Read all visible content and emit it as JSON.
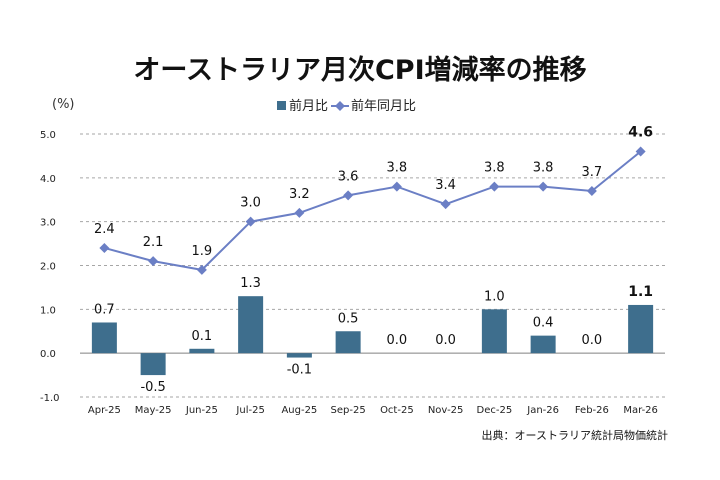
{
  "chart_data": {
    "type": "bar",
    "title": "オーストラリア月次CPI増減率の推移",
    "unit_label": "(%)",
    "source": "出典：オーストラリア統計局物価統計",
    "categories": [
      "Apr-25",
      "May-25",
      "Jun-25",
      "Jul-25",
      "Aug-25",
      "Sep-25",
      "Oct-25",
      "Nov-25",
      "Dec-25",
      "Jan-26",
      "Feb-26",
      "Mar-26"
    ],
    "ylim": [
      -1.0,
      5.0
    ],
    "yticks": [
      "5.0",
      "4.0",
      "3.0",
      "2.0",
      "1.0",
      "0.0",
      "-1.0"
    ],
    "grid": true,
    "legend_position": "top",
    "series": [
      {
        "name": "前月比",
        "type": "bar",
        "color": "#3e6e8d",
        "values": [
          0.7,
          -0.5,
          0.1,
          1.3,
          -0.1,
          0.5,
          0.0,
          0.0,
          1.0,
          0.4,
          0.0,
          1.1
        ],
        "labels": [
          "0.7",
          "-0.5",
          "0.1",
          "1.3",
          "-0.1",
          "0.5",
          "0.0",
          "0.0",
          "1.0",
          "0.4",
          "0.0",
          "1.1"
        ]
      },
      {
        "name": "前年同月比",
        "type": "line",
        "color": "#6b7fc5",
        "values": [
          2.4,
          2.1,
          1.9,
          3.0,
          3.2,
          3.6,
          3.8,
          3.4,
          3.8,
          3.8,
          3.7,
          4.6
        ],
        "labels": [
          "2.4",
          "2.1",
          "1.9",
          "3.0",
          "3.2",
          "3.6",
          "3.8",
          "3.4",
          "3.8",
          "3.8",
          "3.7",
          "4.6"
        ]
      }
    ],
    "highlight_color": "#e0201b",
    "highlight_index": 11
  }
}
